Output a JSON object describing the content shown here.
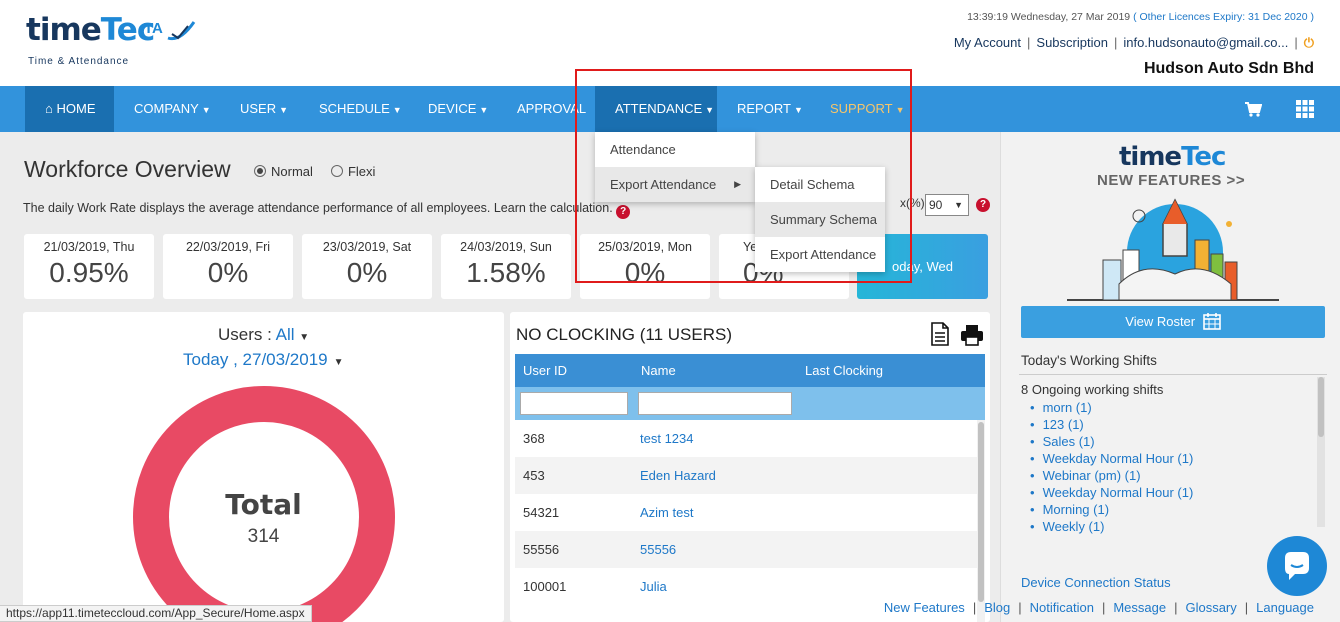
{
  "header": {
    "logo_time": "time",
    "logo_tec": "Tec",
    "logo_ta": "TA",
    "logo_sub": "Time & Attendance",
    "datetime": "13:39:19 Wednesday, 27 Mar 2019",
    "licence": "( Other Licences Expiry:  31 Dec 2020 )",
    "my_account": "My Account",
    "subscription": "Subscription",
    "email": "info.hudsonauto@gmail.co...",
    "power_icon": "power-icon",
    "company": "Hudson Auto Sdn Bhd"
  },
  "nav": {
    "home": "HOME",
    "company": "COMPANY",
    "user": "USER",
    "schedule": "SCHEDULE",
    "device": "DEVICE",
    "approval": "APPROVAL",
    "attendance": "ATTENDANCE",
    "report": "REPORT",
    "support": "SUPPORT",
    "cart_icon": "cart-icon",
    "apps_icon": "grid-icon"
  },
  "attendance_menu": {
    "items": [
      "Attendance",
      "Export Attendance"
    ],
    "submenu": [
      "Detail Schema",
      "Summary Schema",
      "Export Attendance"
    ]
  },
  "overview": {
    "title": "Workforce Overview",
    "mode_normal": "Normal",
    "mode_flexi": "Flexi",
    "selected_mode": "Normal",
    "description": "The daily Work Rate displays the average attendance performance of all employees. Learn the calculation.",
    "rate_label": "x(%)",
    "rate_value": "90"
  },
  "days": [
    {
      "date": "21/03/2019, Thu",
      "value": "0.95%"
    },
    {
      "date": "22/03/2019, Fri",
      "value": "0%"
    },
    {
      "date": "23/03/2019, Sat",
      "value": "0%"
    },
    {
      "date": "24/03/2019, Sun",
      "value": "1.58%"
    },
    {
      "date": "25/03/2019, Mon",
      "value": "0%"
    },
    {
      "date": "Ye",
      "value": "0%"
    }
  ],
  "today_card": "oday, Wed",
  "users_panel": {
    "users_label": "Users",
    "users_value": "All",
    "date": "Today , 27/03/2019",
    "total_label": "Total",
    "total_value": "314",
    "accent": "#e84a64"
  },
  "clocking": {
    "title": "NO CLOCKING (11 USERS)",
    "headers": [
      "User ID",
      "Name",
      "Last Clocking"
    ],
    "rows": [
      {
        "id": "368",
        "name": "test 1234"
      },
      {
        "id": "453",
        "name": "Eden Hazard"
      },
      {
        "id": "54321",
        "name": "Azim test"
      },
      {
        "id": "55556",
        "name": "55556"
      },
      {
        "id": "100001",
        "name": "Julia"
      }
    ]
  },
  "right": {
    "nf_time": "time",
    "nf_tec": "Tec",
    "nf_title": "NEW FEATURES >>",
    "roster_button": "View Roster",
    "shifts_title": "Today's Working Shifts",
    "shifts_sub": "8 Ongoing working shifts",
    "shifts": [
      "morn (1)",
      "123 (1)",
      "Sales (1)",
      "Weekday Normal Hour (1)",
      "Webinar (pm) (1)",
      "Weekday Normal Hour (1)",
      "Morning (1)",
      "Weekly (1)"
    ],
    "device_status": "Device Connection Status"
  },
  "footer": {
    "links": [
      "New Features",
      "Blog",
      "Notification",
      "Message",
      "Glossary",
      "Language"
    ],
    "status_url": "https://app11.timeteccloud.com/App_Secure/Home.aspx"
  }
}
